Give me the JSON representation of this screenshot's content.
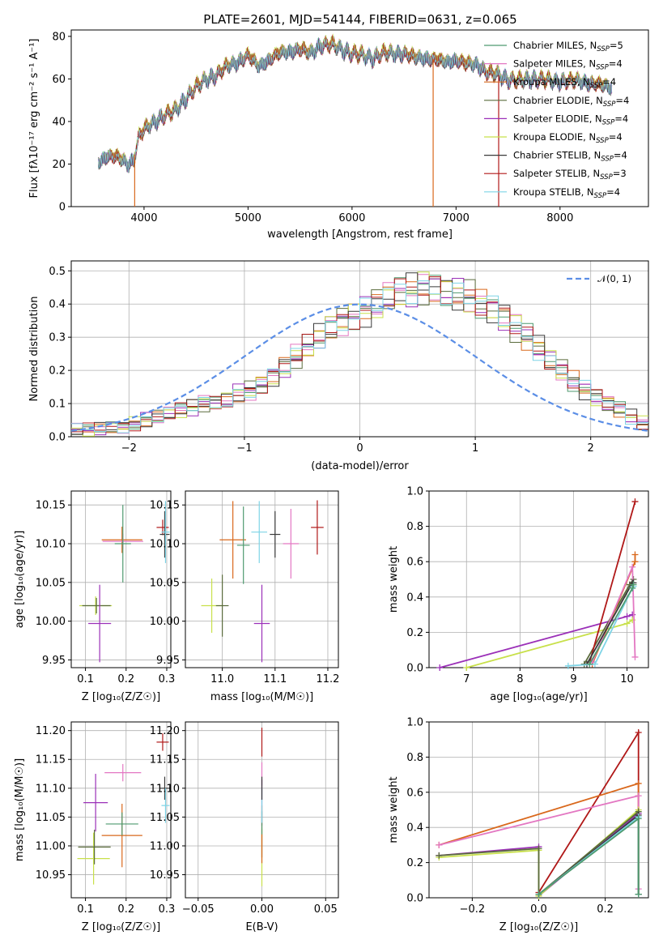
{
  "title": "PLATE=2601, MJD=54144, FIBERID=0631, z=0.065",
  "colors": {
    "chabrier_miles": "#4e9a6f",
    "salpeter_miles": "#e377c2",
    "kroupa_miles": "#d9681c",
    "chabrier_elodie": "#5a6b3c",
    "salpeter_elodie": "#9b30b8",
    "kroupa_elodie": "#c8e04a",
    "chabrier_stelib": "#3a3a3a",
    "salpeter_stelib": "#b01818",
    "kroupa_stelib": "#7ed4e6",
    "normal": "#5b8ee6"
  },
  "chart_data": [
    {
      "id": "spectrum",
      "type": "line",
      "title": "PLATE=2601, MJD=54144, FIBERID=0631, z=0.065",
      "xlabel": "wavelength [Angstrom, rest frame]",
      "ylabel": "Flux [f_λ 10^-17 erg cm^-2 s^-1 A^-1]",
      "xlim": [
        3300,
        8850
      ],
      "ylim": [
        0,
        83
      ],
      "xticks": [
        "4000",
        "5000",
        "6000",
        "7000",
        "8000"
      ],
      "yticks": [
        "0",
        "20",
        "40",
        "60",
        "80"
      ],
      "legend_position": "top-right",
      "legend": [
        "Chabrier MILES, N_SSP=5",
        "Salpeter MILES, N_SSP=4",
        "Kroupa MILES, N_SSP=4",
        "Chabrier ELODIE, N_SSP=4",
        "Salpeter ELODIE, N_SSP=4",
        "Kroupa ELODIE, N_SSP=4",
        "Chabrier STELIB, N_SSP=4",
        "Salpeter STELIB, N_SSP=3",
        "Kroupa STELIB, N_SSP=4"
      ],
      "x": [
        3560,
        3650,
        3750,
        3850,
        3900,
        3950,
        4000,
        4050,
        4100,
        4200,
        4300,
        4400,
        4500,
        4600,
        4700,
        4800,
        4900,
        5000,
        5100,
        5200,
        5300,
        5400,
        5500,
        5600,
        5700,
        5800,
        5900,
        6000,
        6100,
        6200,
        6300,
        6400,
        6500,
        6600,
        6700,
        6800,
        6900,
        7000,
        7100,
        7200,
        7300,
        7400,
        7500,
        7600,
        7700,
        7800,
        7900,
        8000,
        8100,
        8200,
        8300,
        8400,
        8500
      ],
      "y": [
        21,
        24,
        23,
        20,
        22,
        33,
        36,
        38,
        40,
        43,
        45,
        51,
        56,
        60,
        62,
        66,
        68,
        71,
        66,
        69,
        72,
        73,
        74,
        72,
        76,
        76,
        74,
        72,
        71,
        70,
        72,
        72,
        72,
        70,
        70,
        69,
        68,
        69,
        67,
        67,
        63,
        62,
        60,
        59,
        60,
        60,
        59,
        59,
        59,
        59,
        58,
        57,
        56
      ]
    },
    {
      "id": "residuals",
      "type": "step",
      "xlabel": "(data-model)/error",
      "ylabel": "Normed distribution",
      "xlim": [
        -2.5,
        2.5
      ],
      "ylim": [
        0,
        0.53
      ],
      "xticks": [
        "−2",
        "−1",
        "0",
        "1",
        "2"
      ],
      "yticks": [
        "0.0",
        "0.1",
        "0.2",
        "0.3",
        "0.4",
        "0.5"
      ],
      "legend": [
        "𝒩(0, 1)"
      ],
      "legend_position": "top-right",
      "bin_width": 0.1,
      "bin_start": -2.5,
      "hist": [
        0.02,
        0.02,
        0.025,
        0.03,
        0.03,
        0.04,
        0.05,
        0.06,
        0.07,
        0.08,
        0.09,
        0.1,
        0.1,
        0.11,
        0.13,
        0.14,
        0.16,
        0.18,
        0.21,
        0.24,
        0.27,
        0.3,
        0.33,
        0.35,
        0.37,
        0.38,
        0.4,
        0.42,
        0.43,
        0.44,
        0.45,
        0.45,
        0.44,
        0.43,
        0.42,
        0.4,
        0.38,
        0.36,
        0.33,
        0.3,
        0.27,
        0.23,
        0.2,
        0.17,
        0.14,
        0.12,
        0.1,
        0.08,
        0.06,
        0.04
      ]
    },
    {
      "id": "age_vs_Z",
      "type": "scatter",
      "xlabel": "Z [log10(Z/Z☉)]",
      "ylabel": "age [log10(age/yr)]",
      "xlim": [
        0.065,
        0.31
      ],
      "ylim": [
        9.94,
        10.168
      ],
      "xticks": [
        "0.1",
        "0.2",
        "0.3"
      ],
      "yticks": [
        "9.95",
        "10.00",
        "10.05",
        "10.10",
        "10.15"
      ],
      "points": [
        {
          "series": "kroupa_elodie",
          "x": 0.125,
          "y": 10.02,
          "xerr": 0.04,
          "yerr": 0.012
        },
        {
          "series": "chabrier_elodie",
          "x": 0.127,
          "y": 10.02,
          "xerr": 0.035,
          "yerr": 0.01
        },
        {
          "series": "salpeter_elodie",
          "x": 0.135,
          "y": 9.997,
          "xerr": 0.028,
          "yerr": 0.05
        },
        {
          "series": "kroupa_miles",
          "x": 0.19,
          "y": 10.105,
          "xerr": 0.05,
          "yerr": 0.017
        },
        {
          "series": "salpeter_miles",
          "x": 0.192,
          "y": 10.103,
          "xerr": 0.05,
          "yerr": 0.01
        },
        {
          "series": "chabrier_miles",
          "x": 0.192,
          "y": 10.1,
          "xerr": 0.02,
          "yerr": 0.05
        },
        {
          "series": "salpeter_stelib",
          "x": 0.29,
          "y": 10.121,
          "xerr": 0.015,
          "yerr": 0.01
        },
        {
          "series": "chabrier_stelib",
          "x": 0.295,
          "y": 10.112,
          "xerr": 0.012,
          "yerr": 0.03
        },
        {
          "series": "kroupa_stelib",
          "x": 0.297,
          "y": 10.115,
          "xerr": 0.01,
          "yerr": 0.04
        }
      ]
    },
    {
      "id": "age_vs_mass",
      "type": "scatter",
      "xlabel": "mass [log10(M/M☉)]",
      "ylabel": "",
      "xlim": [
        10.93,
        11.22
      ],
      "ylim": [
        9.94,
        10.168
      ],
      "xticks": [
        "11.0",
        "11.1",
        "11.2"
      ],
      "yticks": [
        "9.95",
        "10.00",
        "10.05",
        "10.10",
        "10.15"
      ],
      "points": [
        {
          "series": "kroupa_elodie",
          "x": 10.98,
          "y": 10.02,
          "xerr": 0.02,
          "yerr": 0.035
        },
        {
          "series": "chabrier_elodie",
          "x": 11.0,
          "y": 10.02,
          "xerr": 0.012,
          "yerr": 0.04
        },
        {
          "series": "salpeter_elodie",
          "x": 11.075,
          "y": 9.997,
          "xerr": 0.015,
          "yerr": 0.05
        },
        {
          "series": "kroupa_miles",
          "x": 11.02,
          "y": 10.105,
          "xerr": 0.025,
          "yerr": 0.05
        },
        {
          "series": "chabrier_miles",
          "x": 11.04,
          "y": 10.098,
          "xerr": 0.012,
          "yerr": 0.05
        },
        {
          "series": "kroupa_stelib",
          "x": 11.07,
          "y": 10.115,
          "xerr": 0.015,
          "yerr": 0.04
        },
        {
          "series": "chabrier_stelib",
          "x": 11.1,
          "y": 10.112,
          "xerr": 0.01,
          "yerr": 0.03
        },
        {
          "series": "salpeter_miles",
          "x": 11.13,
          "y": 10.1,
          "xerr": 0.015,
          "yerr": 0.045
        },
        {
          "series": "salpeter_stelib",
          "x": 11.18,
          "y": 10.121,
          "xerr": 0.012,
          "yerr": 0.035
        }
      ]
    },
    {
      "id": "massweight_vs_age",
      "type": "line",
      "xlabel": "age [log10(age/yr)]",
      "ylabel": "mass weight",
      "xlim": [
        6.3,
        10.4
      ],
      "ylim": [
        0,
        1
      ],
      "xticks": [
        "7",
        "8",
        "9",
        "10"
      ],
      "yticks": [
        "0.0",
        "0.2",
        "0.4",
        "0.6",
        "0.8",
        "1.0"
      ],
      "series": [
        {
          "key": "salpeter_elodie",
          "x": [
            6.5,
            10.0,
            10.1
          ],
          "y": [
            0.0,
            0.29,
            0.3
          ]
        },
        {
          "key": "kroupa_elodie",
          "x": [
            7.0,
            10.0,
            10.1
          ],
          "y": [
            0.0,
            0.25,
            0.27
          ]
        },
        {
          "key": "chabrier_elodie",
          "x": [
            9.2,
            10.05,
            10.12
          ],
          "y": [
            0.02,
            0.47,
            0.5
          ]
        },
        {
          "key": "salpeter_stelib",
          "x": [
            9.3,
            10.15
          ],
          "y": [
            0.03,
            0.94
          ]
        },
        {
          "key": "kroupa_miles",
          "x": [
            9.35,
            10.15,
            10.15
          ],
          "y": [
            0.02,
            0.6,
            0.64
          ]
        },
        {
          "key": "salpeter_miles",
          "x": [
            9.35,
            10.1,
            10.15
          ],
          "y": [
            0.03,
            0.57,
            0.06
          ]
        },
        {
          "key": "chabrier_stelib",
          "x": [
            9.25,
            10.1,
            10.12
          ],
          "y": [
            0.02,
            0.48,
            0.48
          ]
        },
        {
          "key": "kroupa_stelib",
          "x": [
            8.9,
            9.4,
            10.1,
            10.12
          ],
          "y": [
            0.01,
            0.02,
            0.45,
            0.46
          ]
        },
        {
          "key": "chabrier_miles",
          "x": [
            9.3,
            10.1,
            10.12
          ],
          "y": [
            0.02,
            0.45,
            0.47
          ]
        }
      ]
    },
    {
      "id": "mass_vs_Z",
      "type": "scatter",
      "xlabel": "Z [log10(Z/Z☉)]",
      "ylabel": "mass [log10(M/M☉)]",
      "xlim": [
        0.065,
        0.31
      ],
      "ylim": [
        10.91,
        11.215
      ],
      "xticks": [
        "0.1",
        "0.2",
        "0.3"
      ],
      "yticks": [
        "10.95",
        "11.00",
        "11.05",
        "11.10",
        "11.15",
        "11.20"
      ],
      "points": [
        {
          "series": "kroupa_elodie",
          "x": 0.12,
          "y": 10.978,
          "xerr": 0.04,
          "yerr": 0.045
        },
        {
          "series": "chabrier_elodie",
          "x": 0.122,
          "y": 10.998,
          "xerr": 0.04,
          "yerr": 0.03
        },
        {
          "series": "salpeter_elodie",
          "x": 0.125,
          "y": 11.075,
          "xerr": 0.03,
          "yerr": 0.05
        },
        {
          "series": "kroupa_miles",
          "x": 0.19,
          "y": 11.018,
          "xerr": 0.05,
          "yerr": 0.055
        },
        {
          "series": "chabrier_miles",
          "x": 0.19,
          "y": 11.038,
          "xerr": 0.04,
          "yerr": 0.02
        },
        {
          "series": "salpeter_miles",
          "x": 0.192,
          "y": 11.127,
          "xerr": 0.045,
          "yerr": 0.015
        },
        {
          "series": "salpeter_stelib",
          "x": 0.29,
          "y": 11.18,
          "xerr": 0.015,
          "yerr": 0.015
        },
        {
          "series": "chabrier_stelib",
          "x": 0.295,
          "y": 11.1,
          "xerr": 0.012,
          "yerr": 0.02
        },
        {
          "series": "kroupa_stelib",
          "x": 0.297,
          "y": 11.07,
          "xerr": 0.01,
          "yerr": 0.03
        }
      ]
    },
    {
      "id": "mass_vs_ebv",
      "type": "scatter",
      "xlabel": "E(B-V)",
      "ylabel": "",
      "xlim": [
        -0.06,
        0.06
      ],
      "ylim": [
        10.91,
        11.215
      ],
      "xticks": [
        "−0.05",
        "0.00",
        "0.05"
      ],
      "yticks": [
        "10.95",
        "11.00",
        "11.05",
        "11.10",
        "11.15",
        "11.20"
      ],
      "points": [
        {
          "series": "kroupa_elodie",
          "x": 0.0,
          "y": 10.98,
          "xerr": 0,
          "yerr": 0.05
        },
        {
          "series": "chabrier_elodie",
          "x": 0.0,
          "y": 11.0,
          "xerr": 0,
          "yerr": 0.02
        },
        {
          "series": "salpeter_elodie",
          "x": 0.0,
          "y": 11.075,
          "xerr": 0,
          "yerr": 0.04
        },
        {
          "series": "kroupa_miles",
          "x": 0.0,
          "y": 11.02,
          "xerr": 0,
          "yerr": 0.05
        },
        {
          "series": "chabrier_miles",
          "x": 0.0,
          "y": 11.04,
          "xerr": 0,
          "yerr": 0.02
        },
        {
          "series": "salpeter_miles",
          "x": 0.0,
          "y": 11.125,
          "xerr": 0,
          "yerr": 0.02
        },
        {
          "series": "kroupa_stelib",
          "x": 0.0,
          "y": 11.07,
          "xerr": 0,
          "yerr": 0.03
        },
        {
          "series": "chabrier_stelib",
          "x": 0.0,
          "y": 11.1,
          "xerr": 0,
          "yerr": 0.02
        },
        {
          "series": "salpeter_stelib",
          "x": 0.0,
          "y": 11.18,
          "xerr": 0,
          "yerr": 0.025
        }
      ]
    },
    {
      "id": "massweight_vs_Z",
      "type": "line",
      "xlabel": "Z [log10(Z/Z☉)]",
      "ylabel": "mass weight",
      "xlim": [
        -0.33,
        0.33
      ],
      "ylim": [
        0,
        1
      ],
      "xticks": [
        "−0.2",
        "0.0",
        "0.2"
      ],
      "yticks": [
        "0.0",
        "0.2",
        "0.4",
        "0.6",
        "0.8",
        "1.0"
      ],
      "series": [
        {
          "key": "salpeter_stelib",
          "x": [
            0.0,
            0.3,
            0.3
          ],
          "y": [
            0.03,
            0.94,
            0.02
          ]
        },
        {
          "key": "kroupa_miles",
          "x": [
            -0.3,
            0.3,
            0.3
          ],
          "y": [
            0.3,
            0.65,
            0.02
          ]
        },
        {
          "key": "salpeter_miles",
          "x": [
            -0.3,
            0.3,
            0.3
          ],
          "y": [
            0.3,
            0.58,
            0.05
          ]
        },
        {
          "key": "salpeter_elodie",
          "x": [
            -0.3,
            0.0,
            0.0,
            0.3,
            0.3
          ],
          "y": [
            0.24,
            0.29,
            0.01,
            0.48,
            0.02
          ]
        },
        {
          "key": "kroupa_elodie",
          "x": [
            -0.3,
            0.0,
            0.0,
            0.3,
            0.3
          ],
          "y": [
            0.23,
            0.27,
            0.01,
            0.5,
            0.02
          ]
        },
        {
          "key": "chabrier_elodie",
          "x": [
            -0.3,
            0.0,
            0.0,
            0.3,
            0.3
          ],
          "y": [
            0.24,
            0.28,
            0.02,
            0.49,
            0.02
          ]
        },
        {
          "key": "chabrier_stelib",
          "x": [
            0.0,
            0.3,
            0.3
          ],
          "y": [
            0.02,
            0.47,
            0.02
          ]
        },
        {
          "key": "kroupa_stelib",
          "x": [
            0.0,
            0.3,
            0.3
          ],
          "y": [
            0.02,
            0.46,
            0.02
          ]
        },
        {
          "key": "chabrier_miles",
          "x": [
            0.0,
            0.3,
            0.3
          ],
          "y": [
            0.02,
            0.45,
            0.02
          ]
        }
      ]
    }
  ]
}
